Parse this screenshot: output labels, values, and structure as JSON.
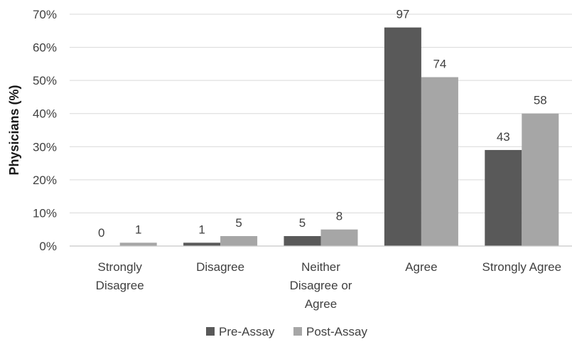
{
  "chart_data": {
    "type": "bar",
    "ylabel": "Physicians (%)",
    "xlabel": "",
    "ylim": [
      0,
      70
    ],
    "yticks": [
      "0%",
      "10%",
      "20%",
      "30%",
      "40%",
      "50%",
      "60%",
      "70%"
    ],
    "grid": true,
    "legend_position": "bottom",
    "categories": [
      [
        "Strongly",
        "Disagree"
      ],
      [
        "Disagree"
      ],
      [
        "Neither",
        "Disagree or",
        "Agree"
      ],
      [
        "Agree"
      ],
      [
        "Strongly Agree"
      ]
    ],
    "series": [
      {
        "name": "Pre-Assay",
        "color": "#595959",
        "values": [
          0,
          1,
          3,
          66,
          29
        ],
        "labels": [
          "0",
          "1",
          "5",
          "97",
          "43"
        ]
      },
      {
        "name": "Post-Assay",
        "color": "#a6a6a6",
        "values": [
          1,
          3,
          5,
          51,
          40
        ],
        "labels": [
          "1",
          "5",
          "8",
          "74",
          "58"
        ]
      }
    ]
  }
}
